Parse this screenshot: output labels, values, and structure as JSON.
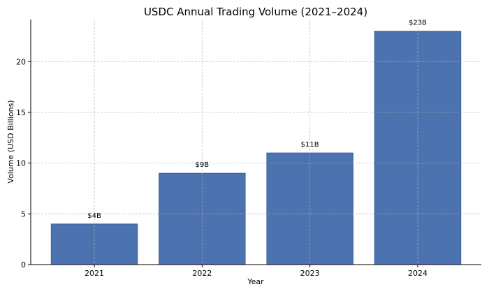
{
  "chart_data": {
    "type": "bar",
    "title": "USDC Annual Trading Volume (2021–2024)",
    "xlabel": "Year",
    "ylabel": "Volume (USD Billions)",
    "categories": [
      "2021",
      "2022",
      "2023",
      "2024"
    ],
    "values": [
      4,
      9,
      11,
      23
    ],
    "data_labels": [
      "$4B",
      "$9B",
      "$11B",
      "$23B"
    ],
    "ylim": [
      0,
      24.15
    ],
    "yticks": [
      0,
      5,
      10,
      15,
      20
    ],
    "grid": true,
    "bar_color": "#4c72b0",
    "bar_edge_color": "#3a5f9e"
  }
}
